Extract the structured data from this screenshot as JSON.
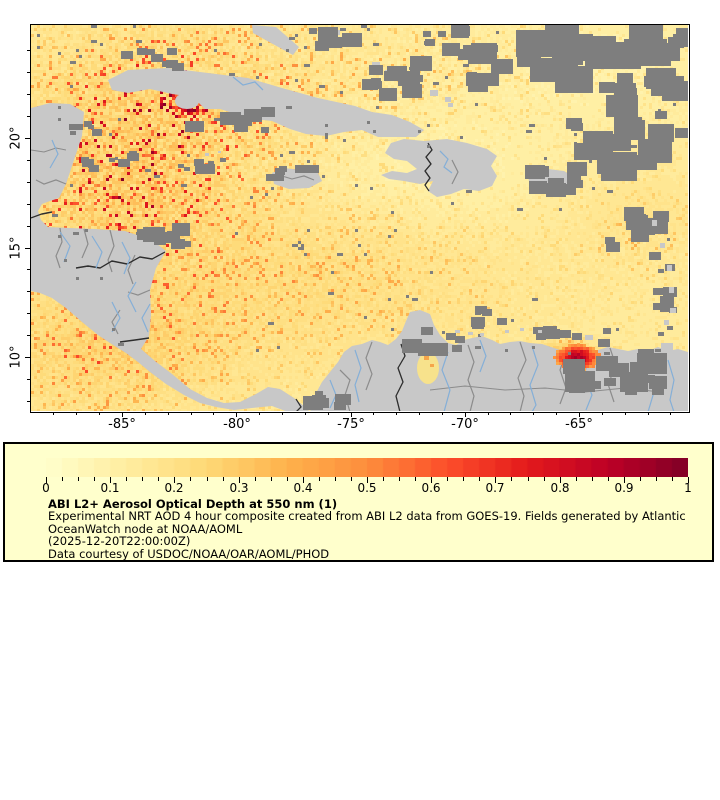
{
  "map": {
    "x_axis": {
      "tick_labels": [
        "-85°",
        "-80°",
        "-75°",
        "-70°",
        "-65°"
      ]
    },
    "y_axis": {
      "tick_labels": [
        "20°",
        "15°",
        "10°"
      ]
    },
    "colors": {
      "land": "#C8C8C8",
      "cloud_no_data": "#7E7E7E",
      "river": "#85AFD7",
      "border_internal": "#8C8C8C",
      "border_international": "#2E2E2E",
      "frame": "#000000",
      "lake_data": "#F7E28C"
    }
  },
  "colorbar": {
    "min": 0,
    "max": 1,
    "segments": 40,
    "tick_labels": [
      "0",
      "0.1",
      "0.2",
      "0.3",
      "0.4",
      "0.5",
      "0.6",
      "0.7",
      "0.8",
      "0.9",
      "1"
    ],
    "colors": [
      "#FFFFCC",
      "#FFEDA0",
      "#FED976",
      "#FEB24C",
      "#FD8D3C",
      "#FC4E2A",
      "#E31A1C",
      "#BD0026",
      "#800026"
    ]
  },
  "legend": {
    "background": "#FFFFCC",
    "title": "ABI L2+ Aerosol Optical Depth at 550 nm (1)",
    "description_line1": "Experimental NRT AOD 4 hour composite created from ABI L2 data from GOES-19. Fields generated by Atlantic",
    "description_line2": "OceanWatch node at NOAA/AOML",
    "timestamp": "(2025-12-20T22:00:00Z)",
    "courtesy": "Data courtesy of USDOC/NOAA/OAR/AOML/PHOD"
  },
  "chart_data": {
    "type": "heatmap",
    "title": "ABI L2+ Aerosol Optical Depth at 550 nm (1)",
    "variable": "Aerosol Optical Depth",
    "value_range": [
      0,
      1
    ],
    "colorbar_ticks": [
      0,
      0.1,
      0.2,
      0.3,
      0.4,
      0.5,
      0.6,
      0.7,
      0.8,
      0.9,
      1
    ],
    "x_ticks_longitude_deg": [
      -85,
      -80,
      -75,
      -70,
      -65
    ],
    "y_ticks_latitude_deg": [
      10,
      15,
      20
    ],
    "legend_position": "bottom"
  }
}
